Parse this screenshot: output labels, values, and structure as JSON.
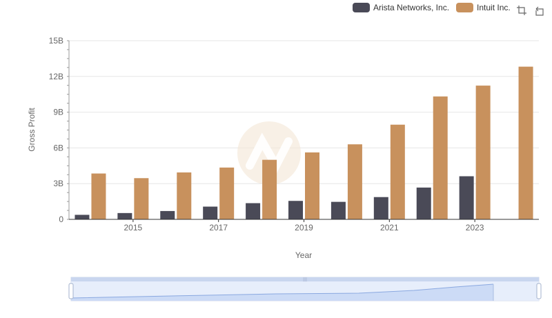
{
  "chart_data": {
    "type": "bar",
    "categories": [
      "2014",
      "2015",
      "2016",
      "2017",
      "2018",
      "2019",
      "2020",
      "2021",
      "2022",
      "2023",
      "2024"
    ],
    "series": [
      {
        "name": "Arista Networks, Inc.",
        "color": "#4a4a57",
        "values": [
          0.38,
          0.53,
          0.7,
          1.07,
          1.36,
          1.55,
          1.47,
          1.87,
          2.67,
          3.62,
          null
        ]
      },
      {
        "name": "Intuit Inc.",
        "color": "#c8915d",
        "values": [
          3.85,
          3.46,
          3.94,
          4.35,
          5.0,
          5.62,
          6.3,
          7.95,
          10.32,
          11.23,
          12.82
        ]
      }
    ],
    "title": "",
    "xlabel": "Year",
    "ylabel": "Gross Profit",
    "ylim": [
      0,
      15
    ],
    "y_ticks": [
      "0",
      "3B",
      "6B",
      "9B",
      "12B",
      "15B"
    ],
    "x_tick_labels": [
      "2015",
      "2017",
      "2019",
      "2021",
      "2023"
    ],
    "grid": true,
    "legend_position": "top-right"
  },
  "toolbox": {
    "zoom_icon": "zoom-icon",
    "reset_icon": "reset-icon"
  }
}
